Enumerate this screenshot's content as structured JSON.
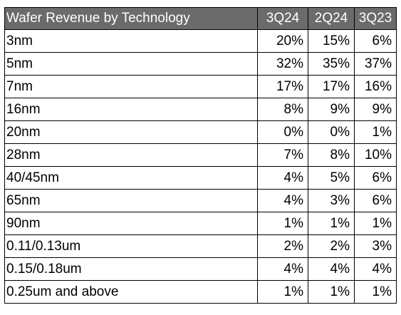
{
  "chart_data": {
    "type": "table",
    "title": "Wafer Revenue by Technology",
    "columns": [
      "3Q24",
      "2Q24",
      "3Q23"
    ],
    "header_bg": "#6b6b6b",
    "header_fg": "#ffffff",
    "rows": [
      {
        "label": "3nm",
        "values": [
          "20%",
          "15%",
          "6%"
        ]
      },
      {
        "label": "5nm",
        "values": [
          "32%",
          "35%",
          "37%"
        ]
      },
      {
        "label": "7nm",
        "values": [
          "17%",
          "17%",
          "16%"
        ]
      },
      {
        "label": "16nm",
        "values": [
          "8%",
          "9%",
          "9%"
        ]
      },
      {
        "label": "20nm",
        "values": [
          "0%",
          "0%",
          "1%"
        ]
      },
      {
        "label": "28nm",
        "values": [
          "7%",
          "8%",
          "10%"
        ]
      },
      {
        "label": "40/45nm",
        "values": [
          "4%",
          "5%",
          "6%"
        ]
      },
      {
        "label": "65nm",
        "values": [
          "4%",
          "3%",
          "6%"
        ]
      },
      {
        "label": "90nm",
        "values": [
          "1%",
          "1%",
          "1%"
        ]
      },
      {
        "label": "0.11/0.13um",
        "values": [
          "2%",
          "2%",
          "3%"
        ]
      },
      {
        "label": "0.15/0.18um",
        "values": [
          "4%",
          "4%",
          "4%"
        ]
      },
      {
        "label": "0.25um and above",
        "values": [
          "1%",
          "1%",
          "1%"
        ]
      }
    ]
  }
}
